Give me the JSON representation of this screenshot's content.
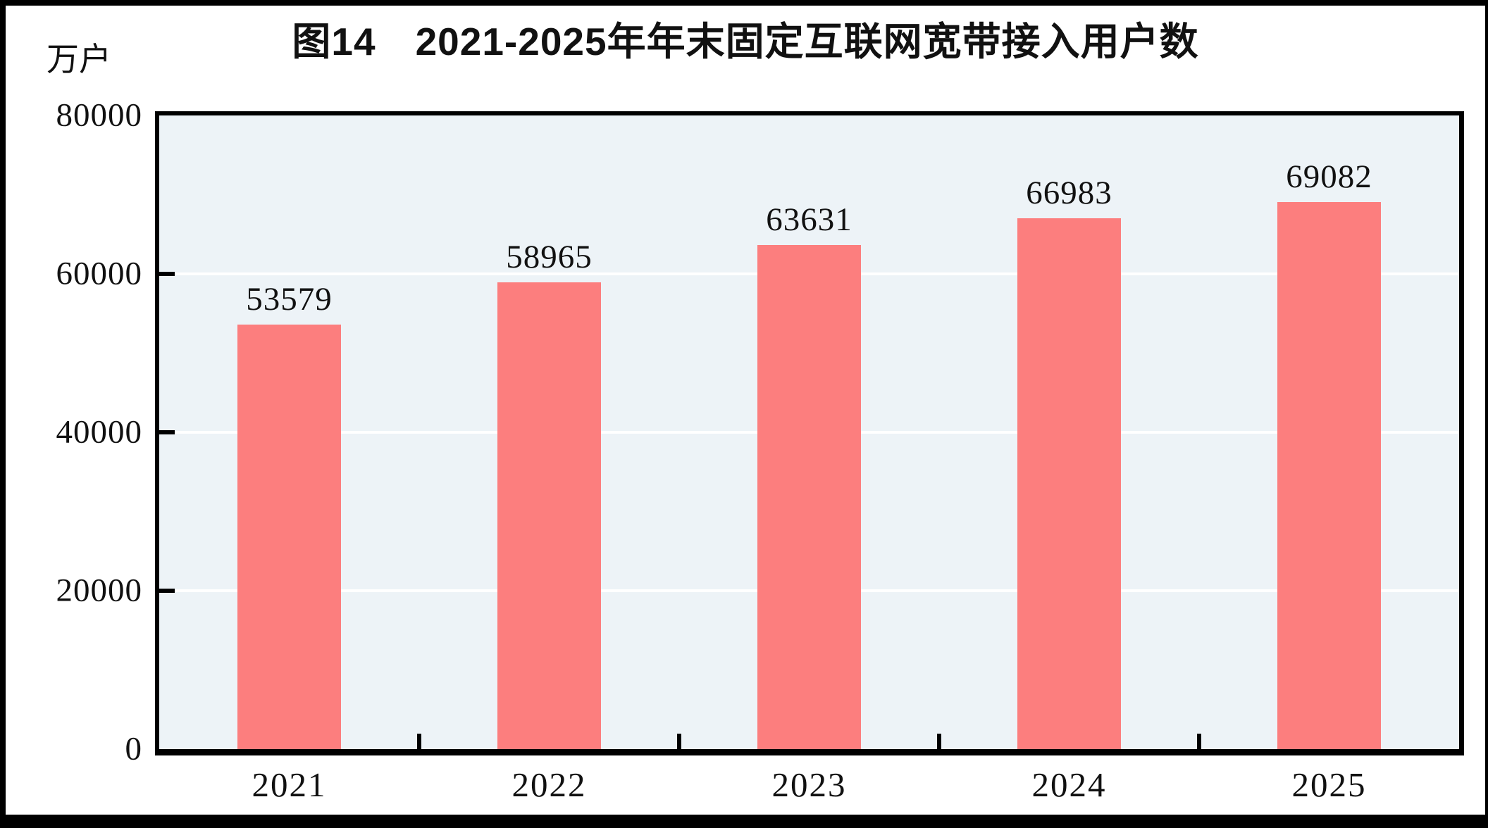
{
  "chart_data": {
    "type": "bar",
    "title": "图14　2021-2025年年末固定互联网宽带接入用户数",
    "unit_label": "万户",
    "categories": [
      "2021",
      "2022",
      "2023",
      "2024",
      "2025"
    ],
    "values": [
      53579,
      58965,
      63631,
      66983,
      69082
    ],
    "value_labels": [
      "53579",
      "58965",
      "63631",
      "66983",
      "69082"
    ],
    "ylim": [
      0,
      80000
    ],
    "yticks": [
      0,
      20000,
      40000,
      60000,
      80000
    ],
    "ytick_labels": [
      "0",
      "20000",
      "40000",
      "60000",
      "80000"
    ],
    "gridline_values": [
      20000,
      40000,
      60000
    ],
    "legend_position": "none",
    "grid": "horizontal",
    "colors": {
      "bar": "#fc7e7e",
      "plot_background": "#edf3f7",
      "gridline": "#ffffff",
      "axis": "#000000",
      "text": "#111111",
      "frame": "#000000"
    }
  }
}
